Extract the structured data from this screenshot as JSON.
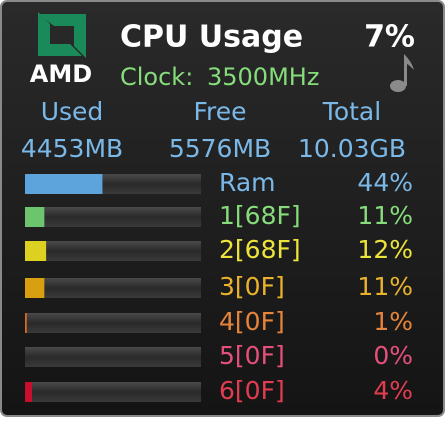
{
  "logo": {
    "text": "AMD"
  },
  "header": {
    "title": "CPU Usage",
    "total_usage": "7%",
    "clock_label": "Clock:",
    "clock_value": "3500MHz"
  },
  "memory": {
    "labels": [
      "Used",
      "Free",
      "Total"
    ],
    "values": [
      "4453MB",
      "5576MB",
      "10.03GB"
    ]
  },
  "bar_range": [
    0,
    100
  ],
  "rows": [
    {
      "label": "Ram",
      "value": 44,
      "value_label": "44%",
      "color": "#5ea4dc",
      "text_color": "#7ab8e8"
    },
    {
      "label": "1[68F]",
      "value": 11,
      "value_label": "11%",
      "color": "#6cc46c",
      "text_color": "#86dc7a"
    },
    {
      "label": "2[68F]",
      "value": 12,
      "value_label": "12%",
      "color": "#dcd020",
      "text_color": "#ece43a"
    },
    {
      "label": "3[0F]",
      "value": 11,
      "value_label": "11%",
      "color": "#d8a010",
      "text_color": "#eab22c"
    },
    {
      "label": "4[0F]",
      "value": 1,
      "value_label": "1%",
      "color": "#d86a20",
      "text_color": "#e6843a"
    },
    {
      "label": "5[0F]",
      "value": 0,
      "value_label": "0%",
      "color": "#d83c68",
      "text_color": "#e4507a"
    },
    {
      "label": "6[0F]",
      "value": 4,
      "value_label": "4%",
      "color": "#c8102e",
      "text_color": "#e23c50"
    }
  ]
}
